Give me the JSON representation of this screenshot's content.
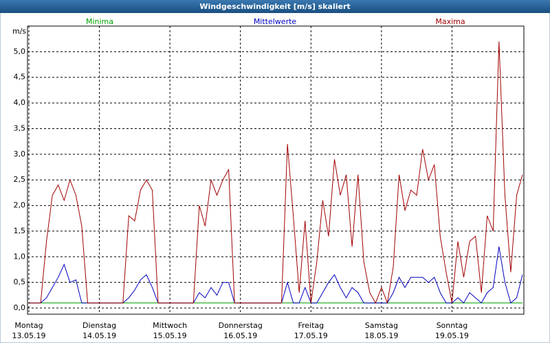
{
  "chart_data": {
    "type": "line",
    "title": "Windgeschwindigkeit [m/s] skaliert",
    "y_label": "m/s",
    "x": [
      0,
      2,
      4,
      6,
      8,
      10,
      12,
      14,
      16,
      18,
      20,
      22,
      24,
      26,
      28,
      30,
      32,
      34,
      36,
      38,
      40,
      42,
      44,
      46,
      48,
      50,
      52,
      54,
      56,
      58,
      60,
      62,
      64,
      66,
      68,
      70,
      72,
      74,
      76,
      78,
      80,
      82,
      84,
      86,
      88,
      90,
      92,
      94,
      96,
      98,
      100,
      102,
      104,
      106,
      108,
      110,
      112,
      114,
      116,
      118,
      120,
      122,
      124,
      126,
      128,
      130,
      132,
      134,
      136,
      138,
      140,
      142,
      144,
      146,
      148,
      150,
      152,
      154,
      156,
      158,
      160,
      162,
      164,
      166,
      168
    ],
    "series": [
      {
        "name": "Minima",
        "color": "#00a000",
        "values": [
          0.1,
          0.1,
          0.1,
          0.1,
          0.1,
          0.1,
          0.1,
          0.1,
          0.1,
          0.1,
          0.1,
          0.1,
          0.1,
          0.1,
          0.1,
          0.1,
          0.1,
          0.1,
          0.1,
          0.1,
          0.1,
          0.1,
          0.1,
          0.1,
          0.1,
          0.1,
          0.1,
          0.1,
          0.1,
          0.1,
          0.1,
          0.1,
          0.1,
          0.1,
          0.1,
          0.1,
          0.1,
          0.1,
          0.1,
          0.1,
          0.1,
          0.1,
          0.1,
          0.1,
          0.1,
          0.1,
          0.1,
          0.1,
          0.1,
          0.1,
          0.1,
          0.1,
          0.1,
          0.1,
          0.1,
          0.1,
          0.1,
          0.1,
          0.1,
          0.1,
          0.1,
          0.1,
          0.1,
          0.1,
          0.1,
          0.1,
          0.1,
          0.1,
          0.1,
          0.1,
          0.1,
          0.1,
          0.1,
          0.1,
          0.1,
          0.1,
          0.1,
          0.1,
          0.1,
          0.1,
          0.1,
          0.1,
          0.1,
          0.1,
          0.1
        ]
      },
      {
        "name": "Mittelwerte",
        "color": "#0000c0",
        "values": [
          0.1,
          0.1,
          0.1,
          0.2,
          0.4,
          0.6,
          0.85,
          0.5,
          0.55,
          0.1,
          0.1,
          0.1,
          0.1,
          0.1,
          0.1,
          0.1,
          0.1,
          0.2,
          0.35,
          0.55,
          0.65,
          0.4,
          0.1,
          0.1,
          0.1,
          0.1,
          0.1,
          0.1,
          0.1,
          0.3,
          0.2,
          0.4,
          0.25,
          0.5,
          0.5,
          0.1,
          0.1,
          0.1,
          0.1,
          0.1,
          0.1,
          0.1,
          0.1,
          0.1,
          0.5,
          0.1,
          0.1,
          0.4,
          0.1,
          0.1,
          0.3,
          0.5,
          0.65,
          0.4,
          0.2,
          0.4,
          0.3,
          0.1,
          0.1,
          0.1,
          0.1,
          0.1,
          0.3,
          0.6,
          0.4,
          0.6,
          0.6,
          0.6,
          0.5,
          0.6,
          0.3,
          0.1,
          0.1,
          0.2,
          0.1,
          0.3,
          0.2,
          0.1,
          0.3,
          0.4,
          1.2,
          0.5,
          0.1,
          0.2,
          0.65
        ]
      },
      {
        "name": "Maxima",
        "color": "#a00000",
        "values": [
          0.1,
          0.1,
          0.1,
          1.3,
          2.2,
          2.4,
          2.1,
          2.5,
          2.2,
          1.6,
          0.1,
          0.1,
          0.1,
          0.1,
          0.1,
          0.1,
          0.1,
          1.8,
          1.7,
          2.3,
          2.5,
          2.3,
          0.1,
          0.1,
          0.1,
          0.1,
          0.1,
          0.1,
          0.1,
          2.0,
          1.6,
          2.5,
          2.2,
          2.5,
          2.7,
          0.1,
          0.1,
          0.1,
          0.1,
          0.1,
          0.1,
          0.1,
          0.1,
          0.1,
          3.2,
          1.8,
          0.3,
          1.7,
          0.1,
          0.9,
          2.1,
          1.4,
          2.9,
          2.2,
          2.6,
          1.2,
          2.6,
          0.9,
          0.3,
          0.1,
          0.4,
          0.1,
          0.8,
          2.6,
          1.9,
          2.3,
          2.2,
          3.1,
          2.5,
          2.8,
          1.4,
          0.7,
          0.1,
          1.3,
          0.6,
          1.3,
          1.4,
          0.3,
          1.8,
          1.5,
          5.2,
          2.2,
          0.7,
          2.2,
          2.6
        ]
      }
    ],
    "xlim": [
      0,
      168
    ],
    "xticks": [
      {
        "value": 0,
        "label": "Montag",
        "date": "13.05.19"
      },
      {
        "value": 24,
        "label": "Dienstag",
        "date": "14.05.19"
      },
      {
        "value": 48,
        "label": "Mittwoch",
        "date": "15.05.19"
      },
      {
        "value": 72,
        "label": "Donnerstag",
        "date": "16.05.19"
      },
      {
        "value": 96,
        "label": "Freitag",
        "date": "17.05.19"
      },
      {
        "value": 120,
        "label": "Samstag",
        "date": "18.05.19"
      },
      {
        "value": 144,
        "label": "Sonntag",
        "date": "19.05.19"
      }
    ],
    "ylim": [
      -0.12,
      5.5
    ],
    "yticks": [
      {
        "value": 0,
        "label": "0,0"
      },
      {
        "value": 0.5,
        "label": "0,5"
      },
      {
        "value": 1,
        "label": "1,0"
      },
      {
        "value": 1.5,
        "label": "1,5"
      },
      {
        "value": 2,
        "label": "2,0"
      },
      {
        "value": 2.5,
        "label": "2,5"
      },
      {
        "value": 3,
        "label": "3,0"
      },
      {
        "value": 3.5,
        "label": "3,5"
      },
      {
        "value": 4,
        "label": "4,0"
      },
      {
        "value": 4.5,
        "label": "4,5"
      },
      {
        "value": 5,
        "label": "5,0"
      }
    ],
    "grid": true
  }
}
